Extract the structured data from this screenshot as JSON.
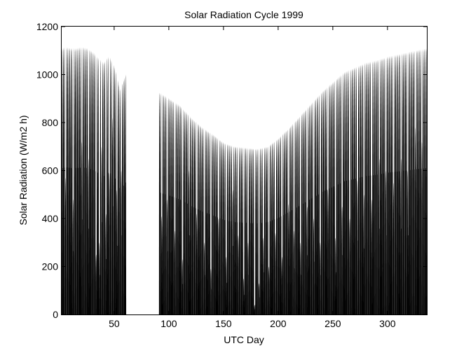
{
  "chart_data": {
    "type": "area",
    "title": "Solar Radiation Cycle 1999",
    "xlabel": "UTC Day",
    "ylabel": "Solar Radiation (W/m2 h)",
    "xlim": [
      2,
      336
    ],
    "ylim": [
      0,
      1200
    ],
    "xticks": [
      50,
      100,
      150,
      200,
      250,
      300
    ],
    "yticks": [
      0,
      200,
      400,
      600,
      800,
      1000,
      1200
    ],
    "grid": false,
    "legend": "none",
    "fill_color": "#000000",
    "series": [
      {
        "gap_days": [
          61,
          91
        ],
        "envelope": {
          "x": [
            2,
            5,
            10,
            15,
            20,
            25,
            30,
            35,
            40,
            45,
            50,
            55,
            60,
            91,
            100,
            110,
            120,
            130,
            140,
            150,
            160,
            170,
            180,
            190,
            200,
            210,
            220,
            230,
            240,
            250,
            260,
            270,
            280,
            290,
            300,
            310,
            320,
            330,
            336
          ],
          "y": [
            1110,
            1115,
            1110,
            1110,
            1115,
            1110,
            1095,
            1070,
            1050,
            1080,
            1030,
            940,
            1000,
            925,
            900,
            870,
            820,
            780,
            750,
            715,
            700,
            695,
            690,
            700,
            735,
            780,
            830,
            880,
            930,
            970,
            1010,
            1030,
            1050,
            1060,
            1075,
            1085,
            1095,
            1105,
            1110
          ]
        },
        "low_days": {
          "x": [
            5,
            12,
            20,
            26,
            33,
            36,
            38,
            42,
            45,
            48,
            52,
            56,
            93,
            98,
            105,
            112,
            118,
            125,
            132,
            138,
            145,
            152,
            158,
            163,
            168,
            172,
            178,
            182,
            186,
            191,
            197,
            203,
            209,
            214,
            220,
            226,
            232,
            238,
            245,
            252,
            258,
            265,
            272,
            278,
            285,
            292,
            298,
            305,
            312,
            318,
            325,
            331
          ],
          "y": [
            570,
            480,
            720,
            650,
            250,
            300,
            700,
            420,
            590,
            820,
            520,
            600,
            410,
            480,
            350,
            230,
            600,
            420,
            300,
            190,
            400,
            240,
            520,
            330,
            150,
            300,
            40,
            130,
            320,
            200,
            340,
            240,
            460,
            350,
            300,
            450,
            400,
            300,
            520,
            320,
            450,
            400,
            560,
            500,
            480,
            650,
            600,
            550,
            650,
            600,
            780,
            720
          ]
        }
      }
    ]
  }
}
